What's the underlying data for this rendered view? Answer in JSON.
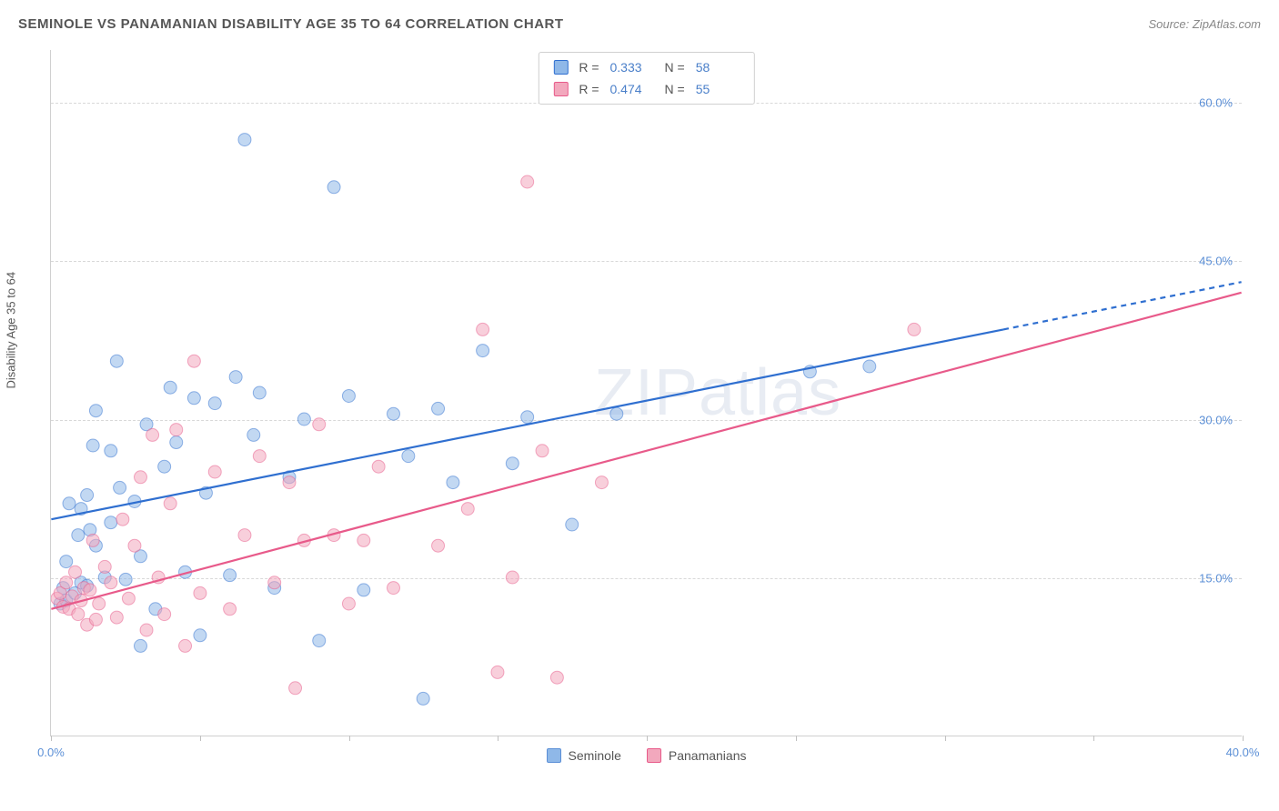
{
  "header": {
    "title": "SEMINOLE VS PANAMANIAN DISABILITY AGE 35 TO 64 CORRELATION CHART",
    "source": "Source: ZipAtlas.com"
  },
  "watermark": "ZIPatlas",
  "chart": {
    "type": "scatter",
    "y_axis_label": "Disability Age 35 to 64",
    "xlim": [
      0,
      40
    ],
    "ylim": [
      0,
      65
    ],
    "x_tick_labels": {
      "0": "0.0%",
      "40": "40.0%"
    },
    "x_tick_positions": [
      0,
      5,
      10,
      15,
      20,
      25,
      30,
      35,
      40
    ],
    "y_ticks": [
      15,
      30,
      45,
      60
    ],
    "y_tick_labels": {
      "15": "15.0%",
      "30": "30.0%",
      "45": "45.0%",
      "60": "60.0%"
    },
    "grid_color": "#d8d8d8",
    "background_color": "#ffffff",
    "axis_color": "#d0d0d0",
    "text_color": "#555555",
    "value_color": "#5b8fd6",
    "title_fontsize": 15,
    "label_fontsize": 13,
    "marker_radius": 7,
    "marker_opacity": 0.55,
    "line_width": 2.2,
    "series": [
      {
        "name": "Seminole",
        "color": "#8fb8e8",
        "line_color": "#2f6fd0",
        "R": "0.333",
        "N": "58",
        "trend": {
          "x0": 0,
          "y0": 20.5,
          "x1": 32,
          "y1": 38.5,
          "x2": 40,
          "y2": 43.0
        },
        "points": [
          [
            0.3,
            12.5
          ],
          [
            0.4,
            14.0
          ],
          [
            0.5,
            16.5
          ],
          [
            0.5,
            12.8
          ],
          [
            0.6,
            22.0
          ],
          [
            0.8,
            13.5
          ],
          [
            0.9,
            19.0
          ],
          [
            1.0,
            14.5
          ],
          [
            1.0,
            21.5
          ],
          [
            1.2,
            22.8
          ],
          [
            1.2,
            14.2
          ],
          [
            1.3,
            19.5
          ],
          [
            1.4,
            27.5
          ],
          [
            1.5,
            30.8
          ],
          [
            1.5,
            18.0
          ],
          [
            1.8,
            15.0
          ],
          [
            2.0,
            20.2
          ],
          [
            2.0,
            27.0
          ],
          [
            2.2,
            35.5
          ],
          [
            2.3,
            23.5
          ],
          [
            2.5,
            14.8
          ],
          [
            2.8,
            22.2
          ],
          [
            3.0,
            8.5
          ],
          [
            3.0,
            17.0
          ],
          [
            3.2,
            29.5
          ],
          [
            3.5,
            12.0
          ],
          [
            3.8,
            25.5
          ],
          [
            4.0,
            33.0
          ],
          [
            4.2,
            27.8
          ],
          [
            4.5,
            15.5
          ],
          [
            4.8,
            32.0
          ],
          [
            5.0,
            9.5
          ],
          [
            5.2,
            23.0
          ],
          [
            5.5,
            31.5
          ],
          [
            6.0,
            15.2
          ],
          [
            6.2,
            34.0
          ],
          [
            6.5,
            56.5
          ],
          [
            6.8,
            28.5
          ],
          [
            7.0,
            32.5
          ],
          [
            7.5,
            14.0
          ],
          [
            8.0,
            24.5
          ],
          [
            8.5,
            30.0
          ],
          [
            9.0,
            9.0
          ],
          [
            9.5,
            52.0
          ],
          [
            10.0,
            32.2
          ],
          [
            10.5,
            13.8
          ],
          [
            11.5,
            30.5
          ],
          [
            12.0,
            26.5
          ],
          [
            12.5,
            3.5
          ],
          [
            13.0,
            31.0
          ],
          [
            14.5,
            36.5
          ],
          [
            15.5,
            25.8
          ],
          [
            16.0,
            30.2
          ],
          [
            17.5,
            20.0
          ],
          [
            19.0,
            30.5
          ],
          [
            25.5,
            34.5
          ],
          [
            27.5,
            35.0
          ],
          [
            13.5,
            24.0
          ]
        ]
      },
      {
        "name": "Panamanians",
        "color": "#f2a8bd",
        "line_color": "#e85a8a",
        "R": "0.474",
        "N": "55",
        "trend": {
          "x0": 0,
          "y0": 12.0,
          "x1": 40,
          "y1": 42.0
        },
        "points": [
          [
            0.2,
            13.0
          ],
          [
            0.3,
            13.5
          ],
          [
            0.4,
            12.2
          ],
          [
            0.5,
            14.5
          ],
          [
            0.6,
            12.0
          ],
          [
            0.7,
            13.2
          ],
          [
            0.8,
            15.5
          ],
          [
            0.9,
            11.5
          ],
          [
            1.0,
            12.8
          ],
          [
            1.1,
            14.0
          ],
          [
            1.2,
            10.5
          ],
          [
            1.3,
            13.8
          ],
          [
            1.4,
            18.5
          ],
          [
            1.5,
            11.0
          ],
          [
            1.6,
            12.5
          ],
          [
            1.8,
            16.0
          ],
          [
            2.0,
            14.5
          ],
          [
            2.2,
            11.2
          ],
          [
            2.4,
            20.5
          ],
          [
            2.6,
            13.0
          ],
          [
            2.8,
            18.0
          ],
          [
            3.0,
            24.5
          ],
          [
            3.2,
            10.0
          ],
          [
            3.4,
            28.5
          ],
          [
            3.6,
            15.0
          ],
          [
            3.8,
            11.5
          ],
          [
            4.0,
            22.0
          ],
          [
            4.2,
            29.0
          ],
          [
            4.5,
            8.5
          ],
          [
            4.8,
            35.5
          ],
          [
            5.0,
            13.5
          ],
          [
            5.5,
            25.0
          ],
          [
            6.0,
            12.0
          ],
          [
            6.5,
            19.0
          ],
          [
            7.0,
            26.5
          ],
          [
            7.5,
            14.5
          ],
          [
            8.0,
            24.0
          ],
          [
            8.2,
            4.5
          ],
          [
            8.5,
            18.5
          ],
          [
            9.0,
            29.5
          ],
          [
            9.5,
            19.0
          ],
          [
            10.0,
            12.5
          ],
          [
            10.5,
            18.5
          ],
          [
            11.0,
            25.5
          ],
          [
            11.5,
            14.0
          ],
          [
            13.0,
            18.0
          ],
          [
            14.0,
            21.5
          ],
          [
            14.5,
            38.5
          ],
          [
            15.5,
            15.0
          ],
          [
            16.0,
            52.5
          ],
          [
            16.5,
            27.0
          ],
          [
            17.0,
            5.5
          ],
          [
            18.5,
            24.0
          ],
          [
            29.0,
            38.5
          ],
          [
            15.0,
            6.0
          ]
        ]
      }
    ],
    "legend_bottom": [
      {
        "label": "Seminole",
        "swatch": "#8fb8e8",
        "border": "#5b8fd6"
      },
      {
        "label": "Panamanians",
        "swatch": "#f2a8bd",
        "border": "#e85a8a"
      }
    ]
  }
}
